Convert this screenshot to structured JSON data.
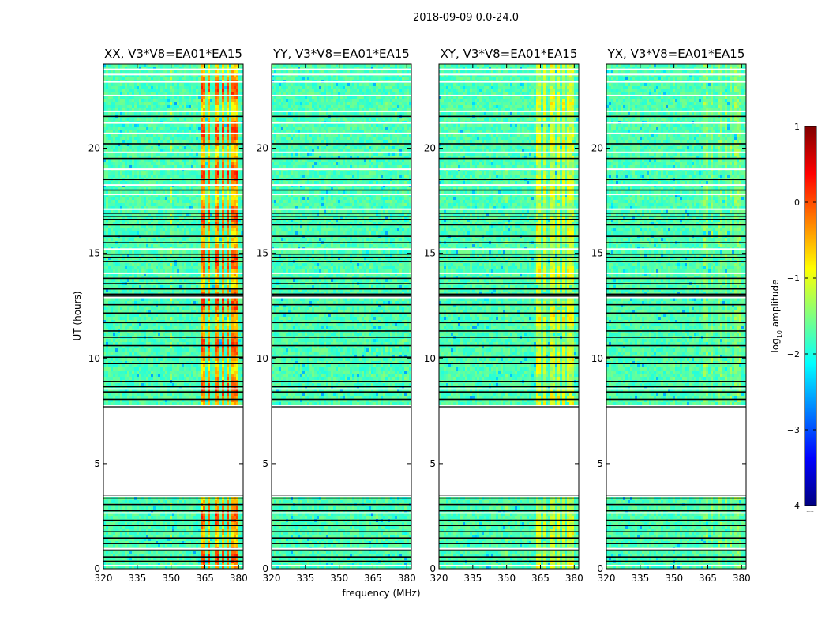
{
  "figure": {
    "suptitle": "2018-09-09 0.0-24.0"
  },
  "chart_data": {
    "type": "heatmap",
    "x_label": "frequency (MHz)",
    "y_label": "UT (hours)",
    "xlim": [
      320,
      382
    ],
    "ylim": [
      0,
      24
    ],
    "x_ticks": [
      320,
      335,
      350,
      365,
      380
    ],
    "y_ticks": [
      0,
      5,
      10,
      15,
      20
    ],
    "panels": [
      {
        "title": "XX, V3*V8=EA01*EA15",
        "pol": "XX",
        "rfi_level": 0.9,
        "rfi_small_level": 0.5
      },
      {
        "title": "YY, V3*V8=EA01*EA15",
        "pol": "YY",
        "rfi_level": 0.0,
        "rfi_small_level": 0.0
      },
      {
        "title": "XY, V3*V8=EA01*EA15",
        "pol": "XY",
        "rfi_level": 0.4,
        "rfi_small_level": 0.25
      },
      {
        "title": "YX, V3*V8=EA01*EA15",
        "pol": "YX",
        "rfi_level": 0.15,
        "rfi_small_level": 0.1
      }
    ],
    "data_gap_hours": [
      3.5,
      7.7
    ],
    "flagged_times_black": [
      0.35,
      0.55,
      0.9,
      1.2,
      1.45,
      1.75,
      2.05,
      2.3,
      2.75,
      3.05,
      3.35,
      8.05,
      8.4,
      8.65,
      8.9,
      9.75,
      10.05,
      10.6,
      11.0,
      11.3,
      11.7,
      12.15,
      12.55,
      12.95,
      13.05,
      13.3,
      13.55,
      13.8,
      14.6,
      14.8,
      14.95,
      15.5,
      15.8,
      16.35,
      16.6,
      16.75,
      16.9,
      18.0,
      18.5,
      19.5,
      20.2,
      21.5
    ],
    "flagged_times_white": [
      0.15,
      0.95,
      2.65,
      8.55,
      12.9,
      14.05,
      15.2,
      17.1,
      17.8,
      18.25,
      19.0,
      19.8,
      20.7,
      21.2,
      21.75,
      22.5,
      23.15,
      23.5,
      23.75
    ],
    "colorbar": {
      "label": "log10 amplitude",
      "label_main": "log",
      "label_sub": "10",
      "label_rest": " amplitude",
      "ticks": [
        1,
        0,
        -1,
        -2,
        -3,
        -4
      ],
      "range": [
        -4,
        1
      ],
      "colormap": "jet",
      "footnote": "....."
    }
  }
}
